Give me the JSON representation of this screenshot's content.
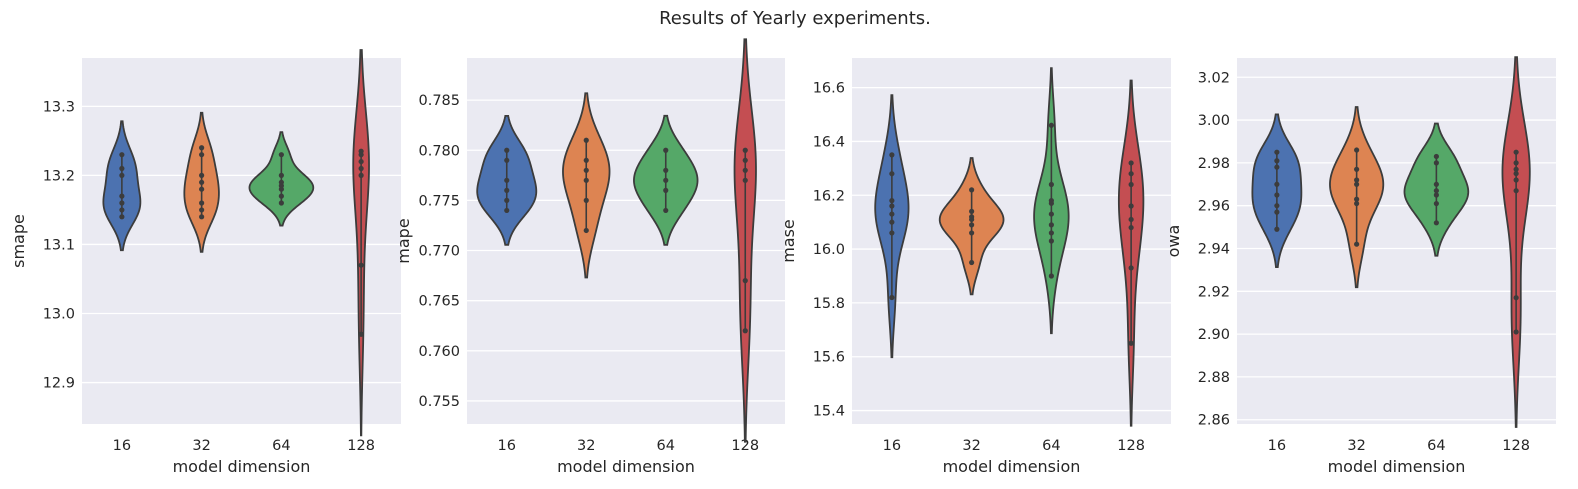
{
  "chart_data": {
    "title": "Results of Yearly experiments.",
    "colors": [
      "#4c72b0",
      "#dd8452",
      "#55a868",
      "#c44e52"
    ],
    "panels": [
      {
        "type": "violin",
        "xlabel": "model dimension",
        "ylabel": "smape",
        "categories": [
          "16",
          "32",
          "64",
          "128"
        ],
        "ylim": [
          12.84,
          13.37
        ],
        "yticks": [
          12.9,
          13.0,
          13.1,
          13.2,
          13.3
        ],
        "ytick_labels": [
          "12.9",
          "13.0",
          "13.1",
          "13.2",
          "13.3"
        ],
        "series": [
          {
            "name": "16",
            "values": [
              13.14,
              13.15,
              13.16,
              13.17,
              13.2,
              13.21,
              13.23
            ]
          },
          {
            "name": "32",
            "values": [
              13.14,
              13.15,
              13.16,
              13.18,
              13.19,
              13.2,
              13.23,
              13.24
            ]
          },
          {
            "name": "64",
            "values": [
              13.16,
              13.17,
              13.18,
              13.185,
              13.19,
              13.2,
              13.23
            ]
          },
          {
            "name": "128",
            "values": [
              12.97,
              13.07,
              13.2,
              13.21,
              13.22,
              13.23,
              13.235
            ]
          }
        ]
      },
      {
        "type": "violin",
        "xlabel": "model dimension",
        "ylabel": "mape",
        "categories": [
          "16",
          "32",
          "64",
          "128"
        ],
        "ylim": [
          0.7527,
          0.7892
        ],
        "yticks": [
          0.755,
          0.76,
          0.765,
          0.77,
          0.775,
          0.78,
          0.785
        ],
        "ytick_labels": [
          "0.755",
          "0.760",
          "0.765",
          "0.770",
          "0.775",
          "0.780",
          "0.785"
        ],
        "series": [
          {
            "name": "16",
            "values": [
              0.774,
              0.775,
              0.776,
              0.777,
              0.779,
              0.78
            ]
          },
          {
            "name": "32",
            "values": [
              0.772,
              0.775,
              0.777,
              0.778,
              0.779,
              0.781
            ]
          },
          {
            "name": "64",
            "values": [
              0.774,
              0.776,
              0.777,
              0.778,
              0.78
            ]
          },
          {
            "name": "128",
            "values": [
              0.762,
              0.767,
              0.777,
              0.778,
              0.779,
              0.78
            ]
          }
        ]
      },
      {
        "type": "violin",
        "xlabel": "model dimension",
        "ylabel": "mase",
        "categories": [
          "16",
          "32",
          "64",
          "128"
        ],
        "ylim": [
          15.35,
          16.71
        ],
        "yticks": [
          15.4,
          15.6,
          15.8,
          16.0,
          16.2,
          16.4,
          16.6
        ],
        "ytick_labels": [
          "15.4",
          "15.6",
          "15.8",
          "16.0",
          "16.2",
          "16.4",
          "16.6"
        ],
        "series": [
          {
            "name": "16",
            "values": [
              15.82,
              16.06,
              16.1,
              16.13,
              16.16,
              16.18,
              16.28,
              16.35
            ]
          },
          {
            "name": "32",
            "values": [
              15.95,
              16.06,
              16.09,
              16.11,
              16.12,
              16.14,
              16.22
            ]
          },
          {
            "name": "64",
            "values": [
              15.9,
              16.03,
              16.06,
              16.09,
              16.13,
              16.17,
              16.18,
              16.24,
              16.46
            ]
          },
          {
            "name": "128",
            "values": [
              15.65,
              15.93,
              16.08,
              16.11,
              16.16,
              16.24,
              16.28,
              16.32
            ]
          }
        ]
      },
      {
        "type": "violin",
        "xlabel": "model dimension",
        "ylabel": "owa",
        "categories": [
          "16",
          "32",
          "64",
          "128"
        ],
        "ylim": [
          2.858,
          3.029
        ],
        "yticks": [
          2.86,
          2.88,
          2.9,
          2.92,
          2.94,
          2.96,
          2.98,
          3.0,
          3.02
        ],
        "ytick_labels": [
          "2.86",
          "2.88",
          "2.90",
          "2.92",
          "2.94",
          "2.96",
          "2.98",
          "3.00",
          "3.02"
        ],
        "series": [
          {
            "name": "16",
            "values": [
              2.949,
              2.957,
              2.96,
              2.965,
              2.97,
              2.978,
              2.981,
              2.985
            ]
          },
          {
            "name": "32",
            "values": [
              2.942,
              2.961,
              2.963,
              2.97,
              2.972,
              2.977,
              2.986
            ]
          },
          {
            "name": "64",
            "values": [
              2.952,
              2.961,
              2.965,
              2.967,
              2.97,
              2.98,
              2.983
            ]
          },
          {
            "name": "128",
            "values": [
              2.901,
              2.917,
              2.967,
              2.972,
              2.975,
              2.977,
              2.98,
              2.985
            ]
          }
        ]
      }
    ]
  }
}
